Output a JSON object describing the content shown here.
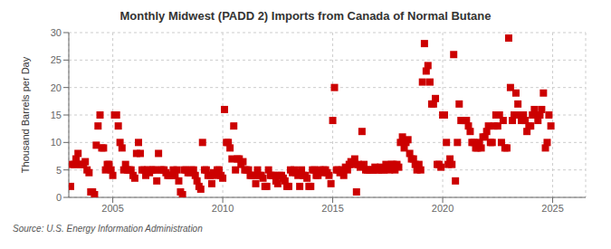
{
  "chart_data": {
    "type": "scatter",
    "title": "Monthly Midwest (PADD 2) Imports from Canada of Normal Butane",
    "ylabel": "Thousand Barrels per Day",
    "annotations": [
      "Source: U.S. Energy Information Administration"
    ],
    "color": "#cc0000",
    "marker": "square",
    "grid": true,
    "xlim": [
      2003.0,
      2026.5
    ],
    "xticks": [
      2005,
      2010,
      2015,
      2020,
      2025
    ],
    "ylim": [
      0,
      30
    ],
    "yticks": [
      0,
      5,
      10,
      15,
      20,
      25,
      30
    ],
    "x": [
      2003.08,
      2003.17,
      2003.25,
      2003.33,
      2003.42,
      2003.5,
      2003.58,
      2003.67,
      2003.75,
      2003.83,
      2003.92,
      2004.0,
      2004.08,
      2004.17,
      2004.25,
      2004.33,
      2004.42,
      2004.5,
      2004.58,
      2004.67,
      2004.75,
      2004.83,
      2004.92,
      2005.0,
      2005.08,
      2005.17,
      2005.25,
      2005.33,
      2005.42,
      2005.5,
      2005.58,
      2005.67,
      2005.75,
      2005.83,
      2005.92,
      2006.0,
      2006.08,
      2006.17,
      2006.25,
      2006.33,
      2006.42,
      2006.5,
      2006.58,
      2006.67,
      2006.75,
      2006.83,
      2006.92,
      2007.0,
      2007.08,
      2007.17,
      2007.25,
      2007.33,
      2007.42,
      2007.5,
      2007.58,
      2007.67,
      2007.75,
      2007.83,
      2007.92,
      2008.0,
      2008.08,
      2008.17,
      2008.25,
      2008.33,
      2008.42,
      2008.5,
      2008.58,
      2008.67,
      2008.75,
      2008.83,
      2008.92,
      2009.0,
      2009.08,
      2009.17,
      2009.25,
      2009.33,
      2009.42,
      2009.5,
      2009.58,
      2009.67,
      2009.75,
      2009.83,
      2009.92,
      2010.0,
      2010.08,
      2010.17,
      2010.25,
      2010.33,
      2010.42,
      2010.5,
      2010.58,
      2010.67,
      2010.75,
      2010.83,
      2010.92,
      2011.0,
      2011.08,
      2011.17,
      2011.25,
      2011.33,
      2011.42,
      2011.5,
      2011.58,
      2011.67,
      2011.75,
      2011.83,
      2011.92,
      2012.0,
      2012.08,
      2012.17,
      2012.25,
      2012.33,
      2012.42,
      2012.5,
      2012.58,
      2012.67,
      2012.75,
      2012.83,
      2012.92,
      2013.0,
      2013.08,
      2013.17,
      2013.25,
      2013.33,
      2013.42,
      2013.5,
      2013.58,
      2013.67,
      2013.75,
      2013.83,
      2013.92,
      2014.0,
      2014.08,
      2014.17,
      2014.25,
      2014.33,
      2014.42,
      2014.5,
      2014.58,
      2014.67,
      2014.75,
      2014.83,
      2014.92,
      2015.0,
      2015.08,
      2015.17,
      2015.25,
      2015.33,
      2015.42,
      2015.5,
      2015.58,
      2015.67,
      2015.75,
      2015.83,
      2015.92,
      2016.0,
      2016.08,
      2016.17,
      2016.25,
      2016.33,
      2016.42,
      2016.5,
      2016.58,
      2016.67,
      2016.75,
      2016.83,
      2016.92,
      2017.0,
      2017.08,
      2017.17,
      2017.25,
      2017.33,
      2017.42,
      2017.5,
      2017.58,
      2017.67,
      2017.75,
      2017.83,
      2017.92,
      2018.0,
      2018.08,
      2018.17,
      2018.25,
      2018.33,
      2018.42,
      2018.5,
      2018.58,
      2018.67,
      2018.75,
      2018.83,
      2018.92,
      2019.0,
      2019.08,
      2019.17,
      2019.25,
      2019.33,
      2019.42,
      2019.5,
      2019.58,
      2019.67,
      2019.75,
      2019.83,
      2019.92,
      2020.0,
      2020.08,
      2020.17,
      2020.25,
      2020.33,
      2020.42,
      2020.5,
      2020.58,
      2020.67,
      2020.75,
      2020.83,
      2020.92,
      2021.0,
      2021.08,
      2021.17,
      2021.25,
      2021.33,
      2021.42,
      2021.5,
      2021.58,
      2021.67,
      2021.75,
      2021.83,
      2021.92,
      2022.0,
      2022.08,
      2022.17,
      2022.25,
      2022.33,
      2022.42,
      2022.5,
      2022.58,
      2022.67,
      2022.75,
      2022.83,
      2022.92,
      2023.0,
      2023.08,
      2023.17,
      2023.25,
      2023.33,
      2023.42,
      2023.5,
      2023.58,
      2023.67,
      2023.75,
      2023.83,
      2023.92,
      2024.0,
      2024.08,
      2024.17,
      2024.25,
      2024.33,
      2024.42,
      2024.5,
      2024.58,
      2024.67,
      2024.75,
      2024.83,
      2024.92
    ],
    "values": [
      2.0,
      6.0,
      6.0,
      7.0,
      8.0,
      6.0,
      6.0,
      6.0,
      6.5,
      5.0,
      4.5,
      1.0,
      1.0,
      0.5,
      9.5,
      13.0,
      15.0,
      9.0,
      9.0,
      5.0,
      6.0,
      6.0,
      5.0,
      4.0,
      15.0,
      15.0,
      13.0,
      10.0,
      9.0,
      5.0,
      6.0,
      5.0,
      5.0,
      5.0,
      4.0,
      3.5,
      8.0,
      10.0,
      8.0,
      5.0,
      5.0,
      4.0,
      5.0,
      4.5,
      5.0,
      5.0,
      5.0,
      3.0,
      8.0,
      5.0,
      5.0,
      5.0,
      4.5,
      4.0,
      4.0,
      4.0,
      5.0,
      4.0,
      5.0,
      3.0,
      1.0,
      0.5,
      5.0,
      5.0,
      4.5,
      4.5,
      5.0,
      5.0,
      4.0,
      3.0,
      2.0,
      1.5,
      10.0,
      5.0,
      5.0,
      4.0,
      4.0,
      2.5,
      4.5,
      4.0,
      5.0,
      5.0,
      4.0,
      3.5,
      16.0,
      10.0,
      10.0,
      9.0,
      7.0,
      13.0,
      5.0,
      7.0,
      7.0,
      6.0,
      6.5,
      5.0,
      5.0,
      5.0,
      4.0,
      4.0,
      4.0,
      2.5,
      5.0,
      4.0,
      4.0,
      3.5,
      2.0,
      2.0,
      5.0,
      4.0,
      4.0,
      4.0,
      3.0,
      2.5,
      4.0,
      4.0,
      3.5,
      3.0,
      2.0,
      2.0,
      5.0,
      4.5,
      5.0,
      4.5,
      4.0,
      2.0,
      5.0,
      4.0,
      4.0,
      3.5,
      2.0,
      2.0,
      5.0,
      5.0,
      4.0,
      4.0,
      5.0,
      4.5,
      5.0,
      5.0,
      4.5,
      4.0,
      2.5,
      14.0,
      20.0,
      5.0,
      5.0,
      4.5,
      5.0,
      4.0,
      5.5,
      5.0,
      6.0,
      6.5,
      6.0,
      7.0,
      1.0,
      6.0,
      5.5,
      12.0,
      6.0,
      5.0,
      5.0,
      5.0,
      5.0,
      5.0,
      5.5,
      5.0,
      5.0,
      5.5,
      5.0,
      5.0,
      6.0,
      5.5,
      5.0,
      6.0,
      6.0,
      5.0,
      6.0,
      5.5,
      10.0,
      11.0,
      9.0,
      10.0,
      10.5,
      8.0,
      7.0,
      7.0,
      6.0,
      5.0,
      6.0,
      5.0,
      21.0,
      28.0,
      23.0,
      24.0,
      21.0,
      17.0,
      17.0,
      18.0,
      6.0,
      6.0,
      5.5,
      15.0,
      15.0,
      10.0,
      6.0,
      7.0,
      6.0,
      26.0,
      3.0,
      10.0,
      17.0,
      14.0,
      14.0,
      14.0,
      14.0,
      13.0,
      12.0,
      10.0,
      10.0,
      9.0,
      9.0,
      10.0,
      9.0,
      11.0,
      11.0,
      12.0,
      13.0,
      10.0,
      10.0,
      13.0,
      15.0,
      13.0,
      15.0,
      10.0,
      14.0,
      9.0,
      9.0,
      29.0,
      20.0,
      14.0,
      15.0,
      19.0,
      17.0,
      15.0,
      14.0,
      15.0,
      14.0,
      12.0,
      13.0,
      13.0,
      15.0,
      16.0,
      15.0,
      14.0,
      15.0,
      16.0,
      19.0,
      9.0,
      10.0,
      15.0,
      13.0
    ]
  }
}
